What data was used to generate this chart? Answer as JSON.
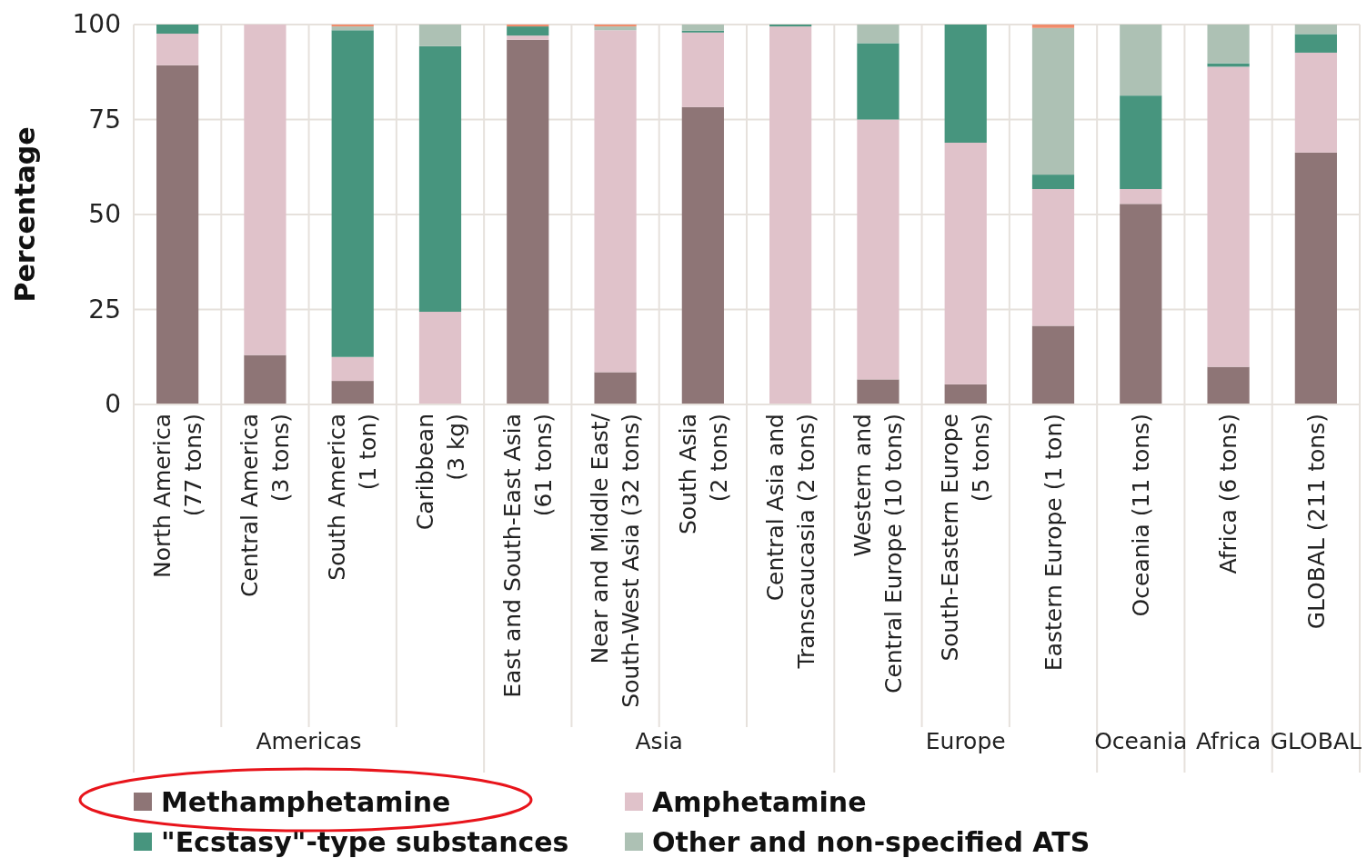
{
  "chart_data": {
    "type": "bar",
    "stacked": true,
    "ylabel": "Percentage",
    "ylim": [
      0,
      100
    ],
    "yticks": [
      0,
      25,
      50,
      75,
      100
    ],
    "grid": true,
    "legend": "bottom",
    "categories": [
      "North America\n(77 tons)",
      "Central America\n(3 tons)",
      "South America\n(1 ton)",
      "Caribbean\n(3 kg)",
      "East and South-East Asia\n(61 tons)",
      "Near and Middle East/\nSouth-West Asia (32 tons)",
      "South Asia\n(2 tons)",
      "Central Asia and\nTranscaucasia (2 tons)",
      "Western and\nCentral Europe (10 tons)",
      "South-Eastern Europe\n(5 tons)",
      "Eastern Europe (1 ton)",
      "Oceania (11 tons)",
      "Africa (6 tons)",
      "GLOBAL (211 tons)"
    ],
    "series": [
      {
        "name": "Methamphetamine",
        "color": "#8e7576",
        "values": [
          89.3,
          13.0,
          6.2,
          0,
          96.0,
          8.5,
          78.3,
          0,
          6.6,
          5.3,
          20.7,
          52.8,
          9.9,
          66.3
        ]
      },
      {
        "name": "Amphetamine",
        "color": "#e0c2ca",
        "values": [
          8.3,
          87.0,
          6.3,
          24.4,
          1.1,
          90.0,
          19.6,
          99.5,
          68.4,
          63.6,
          36.0,
          3.9,
          79.0,
          26.3
        ]
      },
      {
        "name": "\"Ecstasy\"-type substances",
        "color": "#47957e",
        "values": [
          2.4,
          0,
          86.0,
          69.9,
          2.4,
          0,
          0.5,
          0.5,
          20.1,
          31.1,
          3.8,
          24.6,
          0.9,
          4.9
        ]
      },
      {
        "name": "Other and non-specified ATS",
        "color": "#adc1b4",
        "values": [
          0,
          0,
          1.0,
          5.7,
          0,
          1.0,
          1.6,
          0,
          4.9,
          0,
          38.6,
          18.7,
          10.2,
          2.5
        ]
      },
      {
        "color": "#f08c6c",
        "values": [
          0,
          0,
          0.5,
          0,
          0.5,
          0.5,
          0,
          0,
          0,
          0,
          0.9,
          0,
          0,
          0
        ]
      }
    ],
    "annotations": [
      "Americas",
      "Asia",
      "Europe",
      "Oceania",
      "Africa",
      "GLOBAL"
    ]
  }
}
